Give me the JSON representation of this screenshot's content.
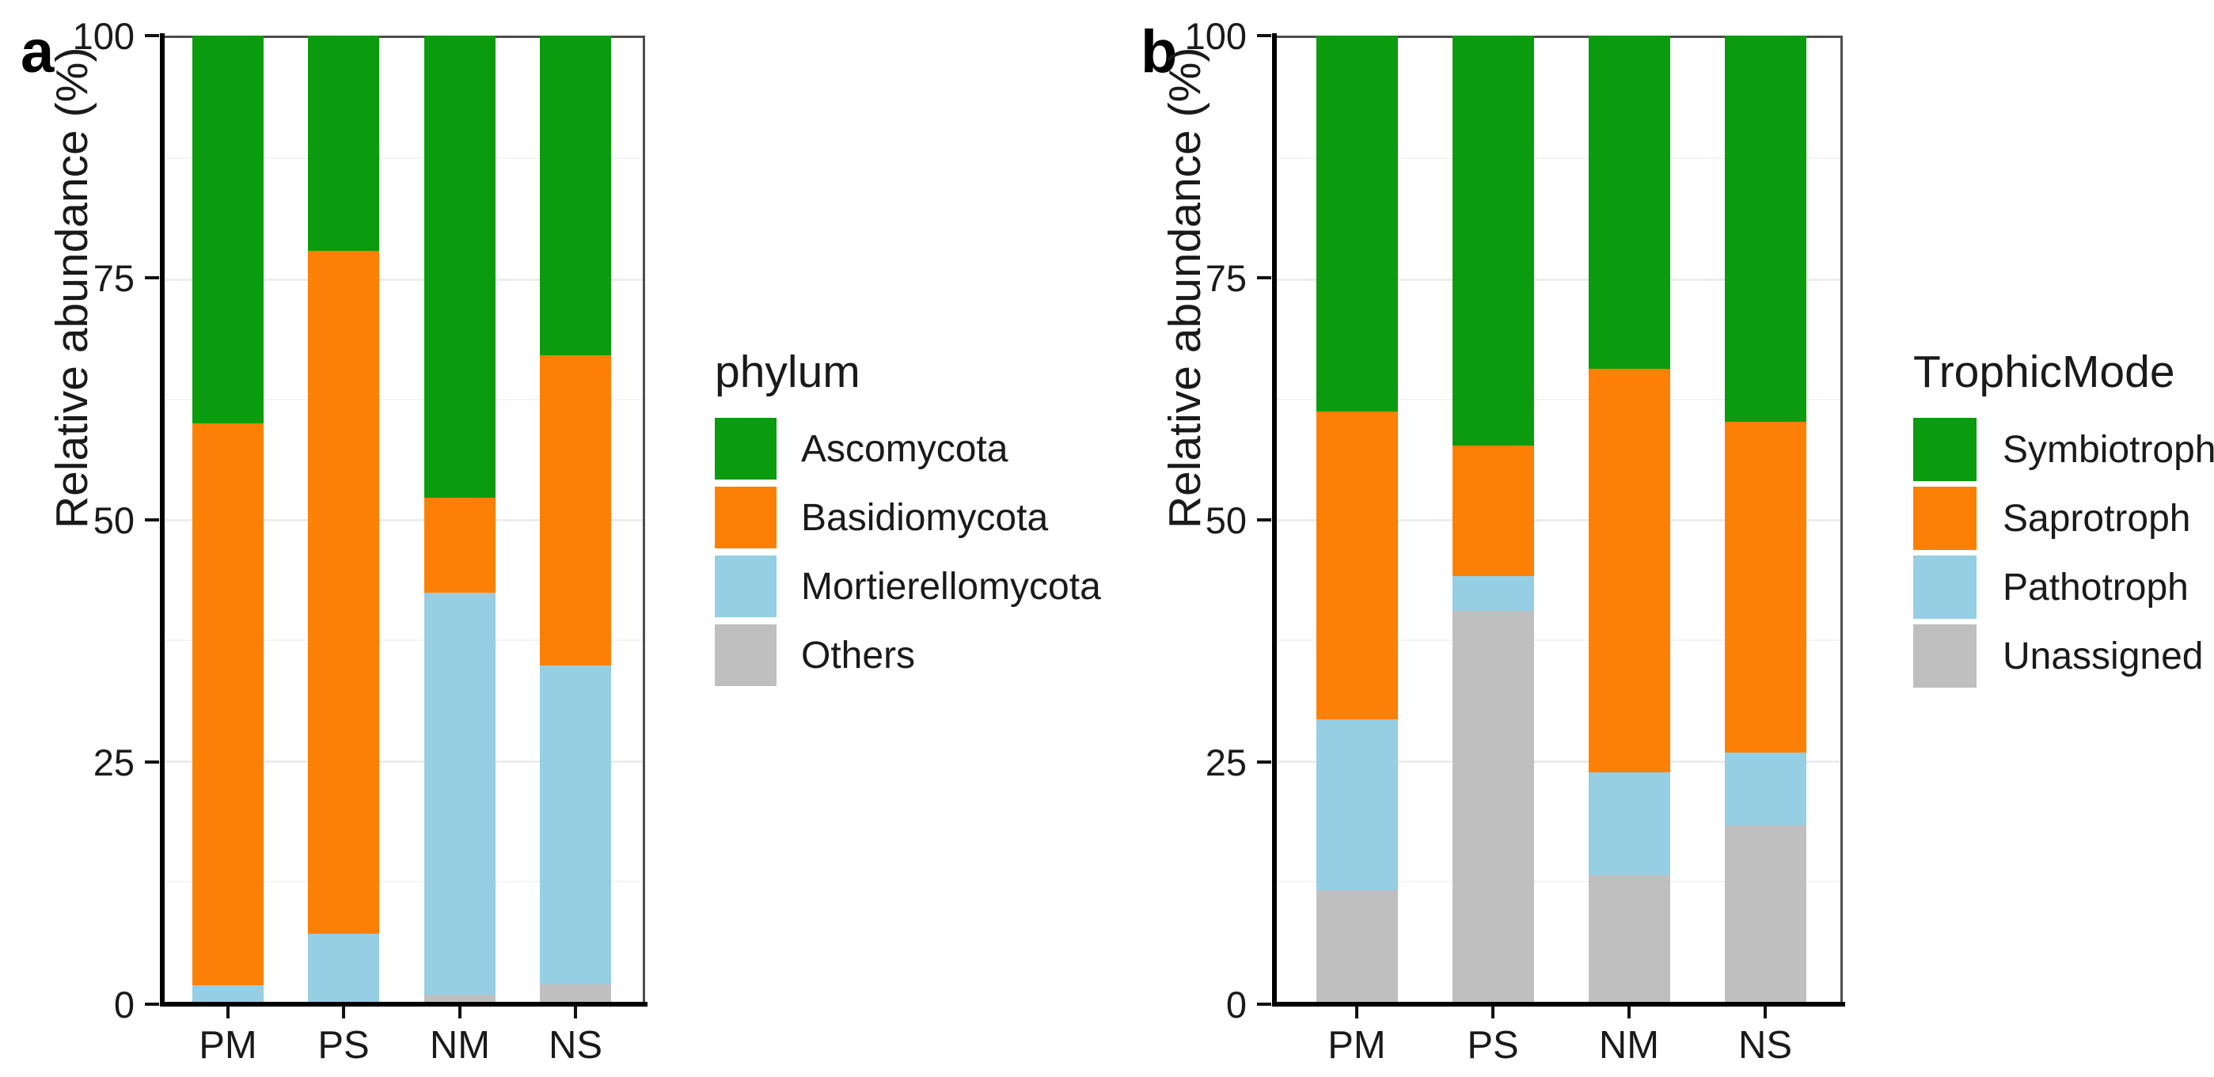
{
  "figure_title": "",
  "y_axis_title": "Relative abundance (%)",
  "chart_data": [
    {
      "type": "bar",
      "stacked": true,
      "panel_label": "a",
      "legend_title": "phylum",
      "legend_position": "right",
      "ylabel": "Relative abundance (%)",
      "ylim": [
        0,
        100
      ],
      "yticks": [
        0,
        25,
        50,
        75,
        100
      ],
      "grid": {
        "major": [
          25,
          50,
          75
        ],
        "minor": [
          12.5,
          37.5,
          62.5,
          87.5
        ]
      },
      "categories": [
        "PM",
        "PS",
        "NM",
        "NS"
      ],
      "series": [
        {
          "name": "Ascomycota",
          "color": "#0a9b0f",
          "values": [
            40.0,
            22.2,
            47.7,
            33.0
          ]
        },
        {
          "name": "Basidiomycota",
          "color": "#fc8006",
          "values": [
            58.0,
            70.5,
            9.8,
            32.0
          ]
        },
        {
          "name": "Mortierellomycota",
          "color": "#96cee4",
          "values": [
            1.8,
            7.1,
            41.5,
            33.0
          ]
        },
        {
          "name": "Others",
          "color": "#bfbfbf",
          "values": [
            0.2,
            0.2,
            1.0,
            2.0
          ]
        }
      ]
    },
    {
      "type": "bar",
      "stacked": true,
      "panel_label": "b",
      "legend_title": "TrophicMode",
      "legend_position": "right",
      "ylabel": "Relative abundance (%)",
      "ylim": [
        0,
        100
      ],
      "yticks": [
        0,
        25,
        50,
        75,
        100
      ],
      "grid": {
        "major": [
          25,
          50,
          75
        ],
        "minor": [
          12.5,
          37.5,
          62.5,
          87.5
        ]
      },
      "categories": [
        "PM",
        "PS",
        "NM",
        "NS"
      ],
      "series": [
        {
          "name": "Symbiotroph",
          "color": "#0a9b0f",
          "values": [
            38.8,
            42.3,
            34.4,
            39.9
          ]
        },
        {
          "name": "Saprotroph",
          "color": "#fc8006",
          "values": [
            31.8,
            13.5,
            41.7,
            34.1
          ]
        },
        {
          "name": "Pathotroph",
          "color": "#96cee4",
          "values": [
            17.6,
            3.6,
            10.6,
            7.5
          ]
        },
        {
          "name": "Unassigned",
          "color": "#bfbfbf",
          "values": [
            11.8,
            40.6,
            13.3,
            18.5
          ]
        }
      ]
    }
  ]
}
